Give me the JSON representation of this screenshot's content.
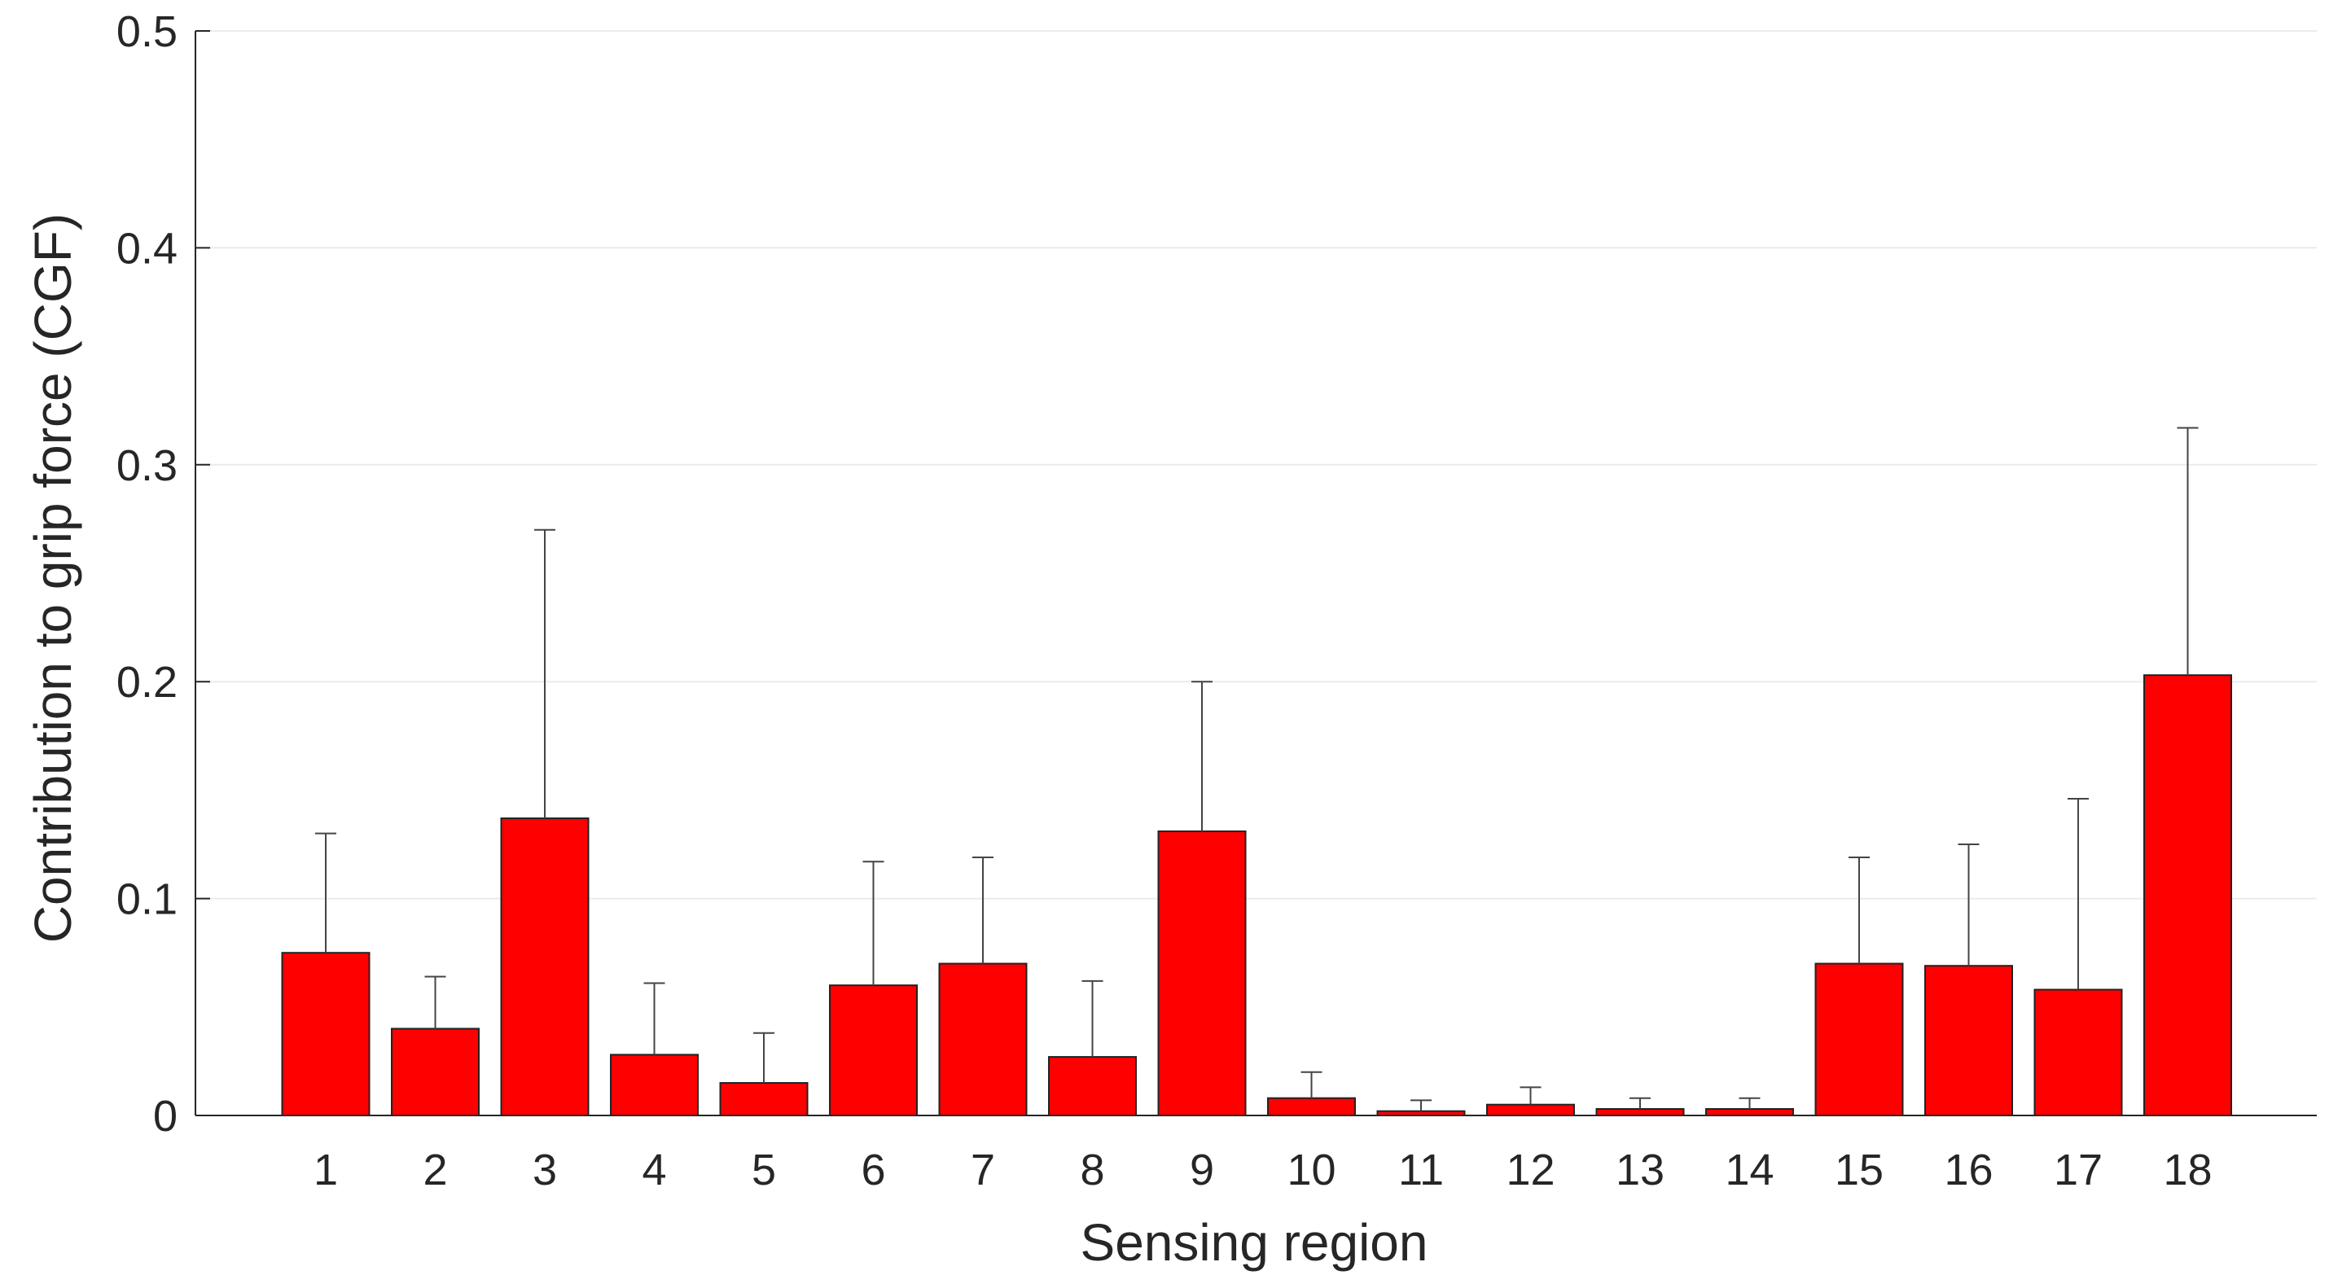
{
  "chart_data": {
    "type": "bar",
    "title": "",
    "xlabel": "Sensing region",
    "ylabel": "Contribution to grip force (CGF)",
    "categories": [
      "1",
      "2",
      "3",
      "4",
      "5",
      "6",
      "7",
      "8",
      "9",
      "10",
      "11",
      "12",
      "13",
      "14",
      "15",
      "16",
      "17",
      "18"
    ],
    "values": [
      0.075,
      0.04,
      0.137,
      0.028,
      0.015,
      0.06,
      0.07,
      0.027,
      0.131,
      0.008,
      0.002,
      0.005,
      0.003,
      0.003,
      0.07,
      0.069,
      0.058,
      0.203
    ],
    "error_upper": [
      0.13,
      0.064,
      0.27,
      0.061,
      0.038,
      0.117,
      0.119,
      0.062,
      0.2,
      0.02,
      0.007,
      0.013,
      0.008,
      0.008,
      0.119,
      0.125,
      0.146,
      0.317
    ],
    "ylim": [
      0,
      0.5
    ],
    "yticks": [
      0,
      0.1,
      0.2,
      0.3,
      0.4,
      0.5
    ],
    "ytick_labels": [
      "0",
      "0.1",
      "0.2",
      "0.3",
      "0.4",
      "0.5"
    ],
    "grid": true,
    "bar_color": "#ff0000"
  }
}
